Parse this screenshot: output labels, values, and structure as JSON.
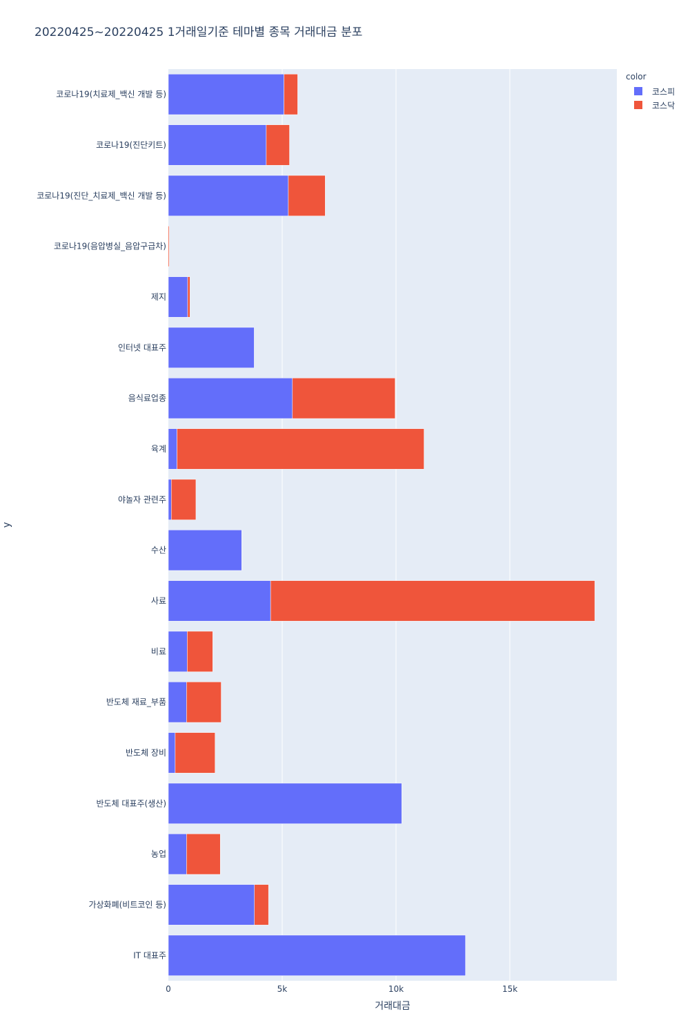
{
  "chart_data": {
    "type": "bar",
    "orientation": "horizontal",
    "barmode": "stack",
    "title": "20220425~20220425 1거래일기준 테마별 종목 거래대금 분포",
    "xlabel": "거래대금",
    "ylabel": "y",
    "xlim": [
      0,
      19700
    ],
    "x_ticks": [
      0,
      5000,
      10000,
      15000
    ],
    "x_tick_labels": [
      "0",
      "5k",
      "10k",
      "15k"
    ],
    "categories": [
      "코로나19(치료제_백신 개발 등)",
      "코로나19(진단키트)",
      "코로나19(진단_치료제_백신 개발 등)",
      "코로나19(음압병실_음압구급차)",
      "제지",
      "인터넷 대표주",
      "음식료업종",
      "육계",
      "야놀자 관련주",
      "수산",
      "사료",
      "비료",
      "반도체 재료_부품",
      "반도체 장비",
      "반도체 대표주(생산)",
      "농업",
      "가상화폐(비트코인 등)",
      "IT 대표주"
    ],
    "series": [
      {
        "name": "코스피",
        "color": "#636efa",
        "values": [
          5080,
          4300,
          5270,
          0,
          850,
          3770,
          5450,
          380,
          130,
          3220,
          4490,
          830,
          800,
          300,
          10250,
          800,
          3780,
          13050
        ]
      },
      {
        "name": "코스닥",
        "color": "#ef553b",
        "values": [
          600,
          1020,
          1620,
          40,
          100,
          0,
          4510,
          10850,
          1080,
          0,
          14240,
          1120,
          1520,
          1750,
          0,
          1480,
          620,
          0
        ]
      }
    ],
    "legend_title": "color",
    "legend_position": "top-right",
    "grid": true
  }
}
